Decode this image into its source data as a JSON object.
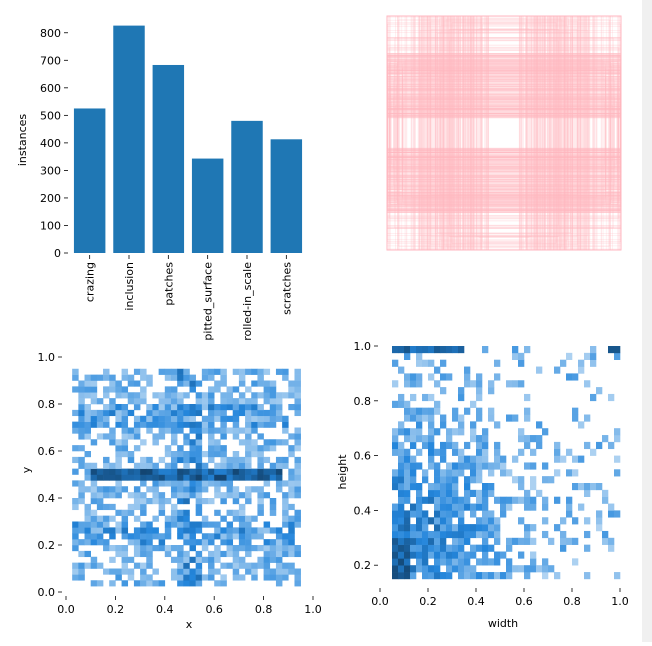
{
  "chart_data": [
    {
      "type": "bar",
      "categories": [
        "crazing",
        "inclusion",
        "patches",
        "pitted_surface",
        "rolled-in_scale",
        "scratches"
      ],
      "values": [
        525,
        826,
        683,
        343,
        480,
        413
      ],
      "title": "",
      "xlabel": "",
      "ylabel": "instances",
      "ylim": [
        0,
        850
      ],
      "yticks": [
        0,
        100,
        200,
        300,
        400,
        500,
        600,
        700,
        800
      ],
      "color": "#1f77b4",
      "grid": false
    },
    {
      "type": "other",
      "title": "",
      "description_kind": "bounding-box overlay",
      "color": "#ffb6c1",
      "ranges": {
        "x": [
          0,
          1
        ],
        "y": [
          0,
          1
        ]
      }
    },
    {
      "type": "heatmap",
      "title": "",
      "xlabel": "x",
      "ylabel": "y",
      "xlim": [
        0,
        1
      ],
      "ylim": [
        0,
        1
      ],
      "xticks": [
        "0.0",
        "0.2",
        "0.4",
        "0.6",
        "0.8",
        "1.0"
      ],
      "yticks": [
        "0.0",
        "0.2",
        "0.4",
        "0.6",
        "0.8",
        "1.0"
      ],
      "bins": 40,
      "highlights": [
        {
          "y": 0.5,
          "x_range": [
            0.1,
            0.9
          ],
          "note": "dense horizontal band"
        }
      ],
      "color": "#1f77b4"
    },
    {
      "type": "heatmap",
      "title": "",
      "xlabel": "width",
      "ylabel": "height",
      "xlim": [
        0,
        1
      ],
      "ylim": [
        0,
        1
      ],
      "xticks": [
        "0.0",
        "0.2",
        "0.4",
        "0.6",
        "0.8",
        "1.0"
      ],
      "yticks": [
        "0.2",
        "0.4",
        "0.6",
        "0.8",
        "1.0"
      ],
      "bins": 40,
      "highlights": [
        {
          "y": 0.98,
          "x_range": [
            0.05,
            0.35
          ],
          "note": "dense top band"
        },
        {
          "x": 0.1,
          "y_range": [
            0.1,
            0.3
          ],
          "note": "dense small-box cluster"
        }
      ],
      "color": "#1f77b4"
    }
  ]
}
